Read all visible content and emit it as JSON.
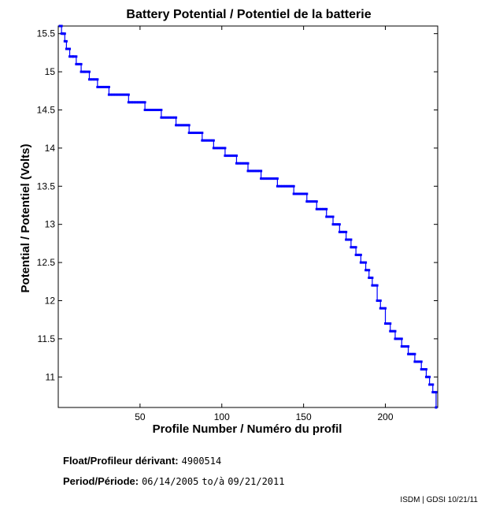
{
  "chart_data": {
    "type": "line",
    "title": "Battery Potential / Potentiel de la batterie",
    "xlabel": "Profile Number / Numéro du profil",
    "ylabel": "Potential / Potentiel (Volts)",
    "xlim": [
      0,
      232
    ],
    "ylim": [
      10.6,
      15.6
    ],
    "xticks": [
      50,
      100,
      150,
      200
    ],
    "yticks": [
      11,
      11.5,
      12,
      12.5,
      13,
      13.5,
      14,
      14.5,
      15,
      15.5
    ],
    "grid": false,
    "color": "#0000ff",
    "x": [
      1,
      2,
      3,
      4,
      5,
      7,
      9,
      11,
      14,
      16,
      19,
      24,
      31,
      43,
      53,
      63,
      72,
      80,
      88,
      95,
      102,
      109,
      116,
      124,
      134,
      144,
      152,
      158,
      164,
      168,
      172,
      176,
      179,
      182,
      185,
      188,
      190,
      192,
      195,
      197,
      200,
      203,
      206,
      210,
      214,
      218,
      222,
      225,
      227,
      229,
      231
    ],
    "y": [
      15.6,
      15.5,
      15.5,
      15.4,
      15.3,
      15.2,
      15.2,
      15.1,
      15.0,
      15.0,
      14.9,
      14.8,
      14.7,
      14.6,
      14.5,
      14.4,
      14.3,
      14.2,
      14.1,
      14.0,
      13.9,
      13.8,
      13.7,
      13.6,
      13.5,
      13.4,
      13.3,
      13.2,
      13.1,
      13.0,
      12.9,
      12.8,
      12.7,
      12.6,
      12.5,
      12.4,
      12.3,
      12.2,
      12.0,
      11.9,
      11.7,
      11.6,
      11.5,
      11.4,
      11.3,
      11.2,
      11.1,
      11.0,
      10.9,
      10.8,
      10.6
    ]
  },
  "info": {
    "float_label": "Float/Profileur dérivant:",
    "float_value": "4900514",
    "period_label": "Period/Période:",
    "period_start": "06/14/2005",
    "period_sep": "to/à",
    "period_end": "09/21/2011"
  },
  "footer": "ISDM | GDSI 10/21/11"
}
